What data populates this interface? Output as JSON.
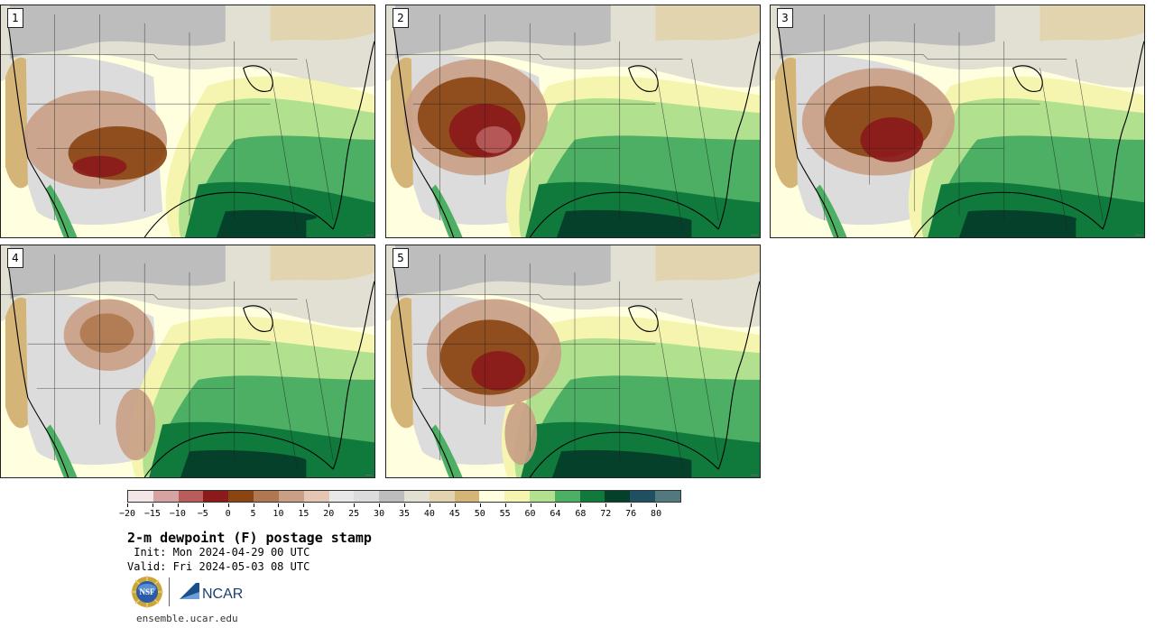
{
  "panels": [
    {
      "number": "1",
      "scenario": "a"
    },
    {
      "number": "2",
      "scenario": "b"
    },
    {
      "number": "3",
      "scenario": "c"
    },
    {
      "number": "4",
      "scenario": "d"
    },
    {
      "number": "5",
      "scenario": "e"
    }
  ],
  "colorbar": {
    "labels": [
      "−20",
      "−15",
      "−10",
      "−5",
      "0",
      "5",
      "10",
      "15",
      "20",
      "25",
      "30",
      "35",
      "40",
      "45",
      "50",
      "55",
      "60",
      "64",
      "68",
      "72",
      "76",
      "80"
    ],
    "colors": [
      "#f3e6e6",
      "#d6a3a3",
      "#b85c5c",
      "#8b1a1a",
      "#8b4513",
      "#b07850",
      "#c9a085",
      "#e3c7b3",
      "#e8e8e8",
      "#dcdcdc",
      "#bdbdbd",
      "#e2e0d2",
      "#e3d4b0",
      "#d4b477",
      "#ffffe0",
      "#f5f5b0",
      "#b1e08e",
      "#4caf63",
      "#0f7a3c",
      "#04402a",
      "#1e5060",
      "#527a7e"
    ]
  },
  "title": "2-m dewpoint (F) postage stamp",
  "init": " Init: Mon 2024-04-29 00 UTC",
  "valid": "Valid: Fri 2024-05-03 08 UTC",
  "logos": {
    "nsf": "NSF",
    "ncar": "NCAR"
  },
  "site": "ensemble.ucar.edu"
}
